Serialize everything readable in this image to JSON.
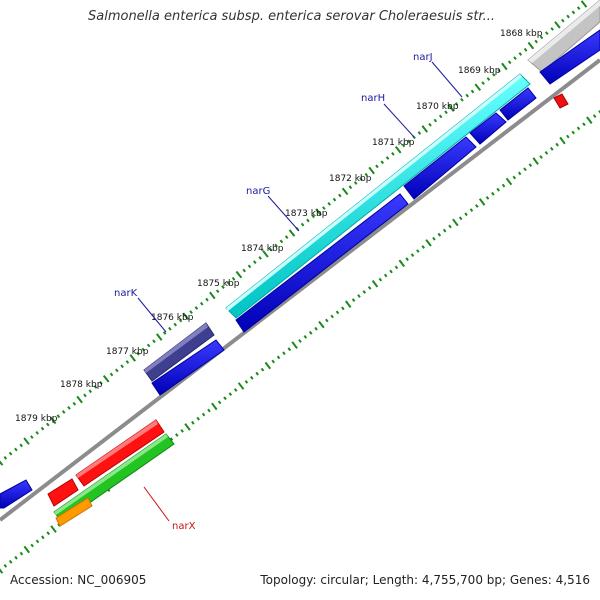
{
  "title": "Salmonella enterica subsp. enterica serovar Choleraesuis str...",
  "accession": "Accession: NC_006905",
  "summary": "Topology: circular; Length: 4,755,700 bp; Genes: 4,516",
  "ticks": [
    {
      "label": "1868 kbp"
    },
    {
      "label": "1869 kbp"
    },
    {
      "label": "1870 kbp"
    },
    {
      "label": "1871 kbp"
    },
    {
      "label": "1872 kbp"
    },
    {
      "label": "1873 kbp"
    },
    {
      "label": "1874 kbp"
    },
    {
      "label": "1875 kbp"
    },
    {
      "label": "1876 kbp"
    },
    {
      "label": "1877 kbp"
    },
    {
      "label": "1878 kbp"
    },
    {
      "label": "1879 kbp"
    }
  ],
  "genes": [
    {
      "label": "narJ"
    },
    {
      "label": "narH"
    },
    {
      "label": "narG"
    },
    {
      "label": "narK"
    },
    {
      "label": "narX"
    }
  ],
  "colors": {
    "cds_blue": "#0000dd",
    "cds_cyan": "#00e5e5",
    "gene_dark": "#3c3c8c",
    "gene_red": "#ff1111",
    "gene_green": "#22c422",
    "gene_orange": "#ff9900",
    "gene_gray": "#c8c8c8",
    "tick_green": "#1a8a1a",
    "backbone": "#8c8c8c"
  }
}
